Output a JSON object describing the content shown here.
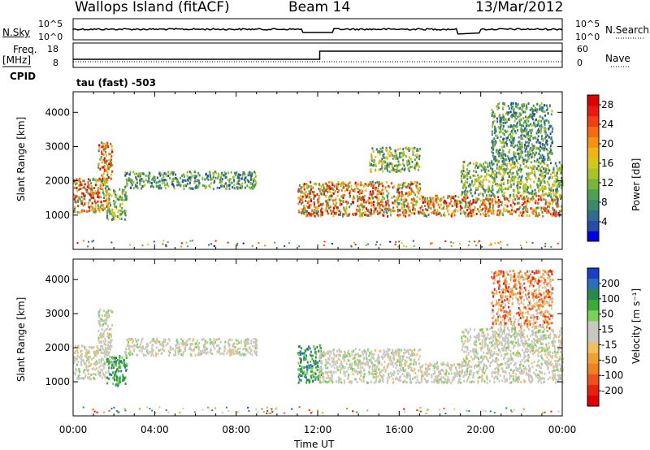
{
  "header": {
    "station": "Wallops Island (fitACF)",
    "beam": "Beam 14",
    "date": "13/Mar/2012"
  },
  "panel_labels": {
    "nsky": "N.Sky",
    "nsky_hi": "10^5",
    "nsky_lo": "10^0",
    "nsearch": "N.Search",
    "nsearch_hi": "10^5",
    "nsearch_lo": "10^0",
    "freq_top": "Freq.",
    "freq_unit": "[MHz]",
    "freq_hi": "18",
    "freq_lo": "8",
    "cpid": "CPID",
    "nave": "Nave",
    "nave_hi": "60",
    "nave_lo": "0",
    "cpid_value": "tau (fast) -503"
  },
  "chart_data": [
    {
      "type": "heatmap",
      "title": "",
      "variable": "Power",
      "ylabel": "Slant Range [km]",
      "ylim": [
        0,
        4600
      ],
      "yticks": [
        "1000",
        "2000",
        "3000",
        "4000"
      ],
      "colorbar": {
        "label": "Power [dB]",
        "ticks": [
          "4",
          "8",
          "12",
          "16",
          "20",
          "24",
          "28"
        ],
        "colors": [
          "#0000e0",
          "#2a4aa8",
          "#2e6e8a",
          "#3a8a6a",
          "#4ea050",
          "#7ab438",
          "#a8c228",
          "#d2c81c",
          "#f0b414",
          "#f89010",
          "#f86a10",
          "#f04010",
          "#e81a10",
          "#e00000"
        ]
      },
      "regions": [
        {
          "t": [
            0.0,
            1.8
          ],
          "r": [
            1100,
            2100
          ],
          "value": "high"
        },
        {
          "t": [
            1.2,
            1.9
          ],
          "r": [
            2000,
            3150
          ],
          "value": "high"
        },
        {
          "t": [
            1.6,
            2.6
          ],
          "r": [
            900,
            1800
          ],
          "value": "medium"
        },
        {
          "t": [
            2.5,
            9.0
          ],
          "r": [
            1800,
            2300
          ],
          "value": "low"
        },
        {
          "t": [
            11.0,
            17.0
          ],
          "r": [
            1000,
            2000
          ],
          "value": "high"
        },
        {
          "t": [
            14.5,
            17.0
          ],
          "r": [
            2300,
            3000
          ],
          "value": "medium"
        },
        {
          "t": [
            17.0,
            24.0
          ],
          "r": [
            1000,
            1600
          ],
          "value": "high"
        },
        {
          "t": [
            19.0,
            24.0
          ],
          "r": [
            1600,
            2600
          ],
          "value": "medium"
        },
        {
          "t": [
            20.5,
            23.5
          ],
          "r": [
            2600,
            4300
          ],
          "value": "low"
        }
      ]
    },
    {
      "type": "heatmap",
      "title": "",
      "variable": "Velocity",
      "ylabel": "Slant Range [km]",
      "xlabel": "Time UT",
      "ylim": [
        0,
        4600
      ],
      "yticks": [
        "1000",
        "2000",
        "3000",
        "4000"
      ],
      "xticks": [
        "00:00",
        "04:00",
        "08:00",
        "12:00",
        "16:00",
        "20:00",
        "00:00"
      ],
      "xlim_hours": [
        0,
        24
      ],
      "colorbar": {
        "label": "Velocity [m s⁻¹]",
        "ticks": [
          "200",
          "100",
          "50",
          "15",
          "-15",
          "-50",
          "-100",
          "-200"
        ],
        "colors": [
          "#1a3ec8",
          "#2a70b8",
          "#2a8a4a",
          "#3aaa3a",
          "#7ad05a",
          "#c8c8c0",
          "#c8c8c0",
          "#f0c060",
          "#f0a030",
          "#f08020",
          "#f05020",
          "#e82010",
          "#e00000"
        ]
      },
      "regions": [
        {
          "t": [
            0.0,
            1.8
          ],
          "r": [
            1100,
            2100
          ],
          "value": "ground"
        },
        {
          "t": [
            1.2,
            1.9
          ],
          "r": [
            2000,
            3150
          ],
          "value": "ground"
        },
        {
          "t": [
            1.6,
            2.6
          ],
          "r": [
            900,
            1800
          ],
          "value": "positive"
        },
        {
          "t": [
            2.5,
            9.0
          ],
          "r": [
            1800,
            2300
          ],
          "value": "ground"
        },
        {
          "t": [
            11.0,
            12.2
          ],
          "r": [
            1000,
            2100
          ],
          "value": "positive"
        },
        {
          "t": [
            12.0,
            17.0
          ],
          "r": [
            1000,
            2000
          ],
          "value": "ground"
        },
        {
          "t": [
            17.0,
            24.0
          ],
          "r": [
            1000,
            1600
          ],
          "value": "ground"
        },
        {
          "t": [
            19.0,
            24.0
          ],
          "r": [
            1600,
            2600
          ],
          "value": "ground"
        },
        {
          "t": [
            20.5,
            23.5
          ],
          "r": [
            2600,
            4300
          ],
          "value": "negative"
        }
      ]
    }
  ]
}
